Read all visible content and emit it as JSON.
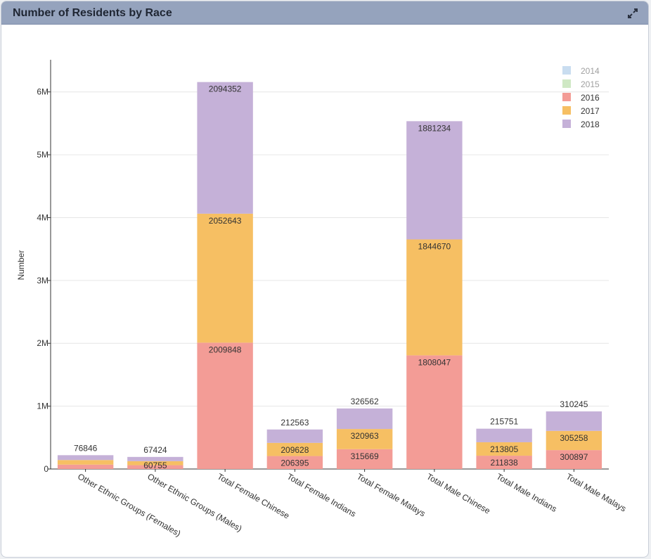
{
  "window": {
    "title": "Number of Residents by Race",
    "expand_icon": "expand-icon"
  },
  "chart_data": {
    "type": "bar",
    "stacked": true,
    "title": "",
    "xlabel": "",
    "ylabel": "Number",
    "ylim": [
      0,
      6500000
    ],
    "yticks": [
      0,
      1000000,
      2000000,
      3000000,
      4000000,
      5000000,
      6000000
    ],
    "ytick_labels": [
      "0",
      "1M",
      "2M",
      "3M",
      "4M",
      "5M",
      "6M"
    ],
    "categories": [
      "Other Ethnic Groups (Females)",
      "Other Ethnic Groups (Males)",
      "Total Female Chinese",
      "Total Female Indians",
      "Total Female Malays",
      "Total Male Chinese",
      "Total Male Indians",
      "Total Male Malays"
    ],
    "series": [
      {
        "name": "2014",
        "color": "#c9ddf0",
        "visible": false,
        "values": [
          null,
          null,
          null,
          null,
          null,
          null,
          null,
          null
        ]
      },
      {
        "name": "2015",
        "color": "#cfe8c4",
        "visible": false,
        "values": [
          null,
          null,
          null,
          null,
          null,
          null,
          null,
          null
        ]
      },
      {
        "name": "2016",
        "color": "#f39c96",
        "visible": true,
        "values": [
          70000,
          60755,
          2009848,
          206395,
          315669,
          1808047,
          211838,
          300897
        ]
      },
      {
        "name": "2017",
        "color": "#f6bf63",
        "visible": true,
        "values": [
          73000,
          64000,
          2052643,
          209628,
          320963,
          1844670,
          213805,
          305258
        ]
      },
      {
        "name": "2018",
        "color": "#c5b1d8",
        "visible": true,
        "values": [
          76846,
          67424,
          2094352,
          212563,
          326562,
          1881234,
          215751,
          310245
        ]
      }
    ],
    "data_labels": {
      "2016": [
        "",
        "60755",
        "2009848",
        "206395",
        "315669",
        "1808047",
        "211838",
        "300897"
      ],
      "2017": [
        "",
        "",
        "2052643",
        "209628",
        "320963",
        "1844670",
        "213805",
        "305258"
      ],
      "2018": [
        "76846",
        "67424",
        "2094352",
        "212563",
        "326562",
        "1881234",
        "215751",
        "310245"
      ]
    },
    "legend_position": "top-right",
    "grid": true
  }
}
